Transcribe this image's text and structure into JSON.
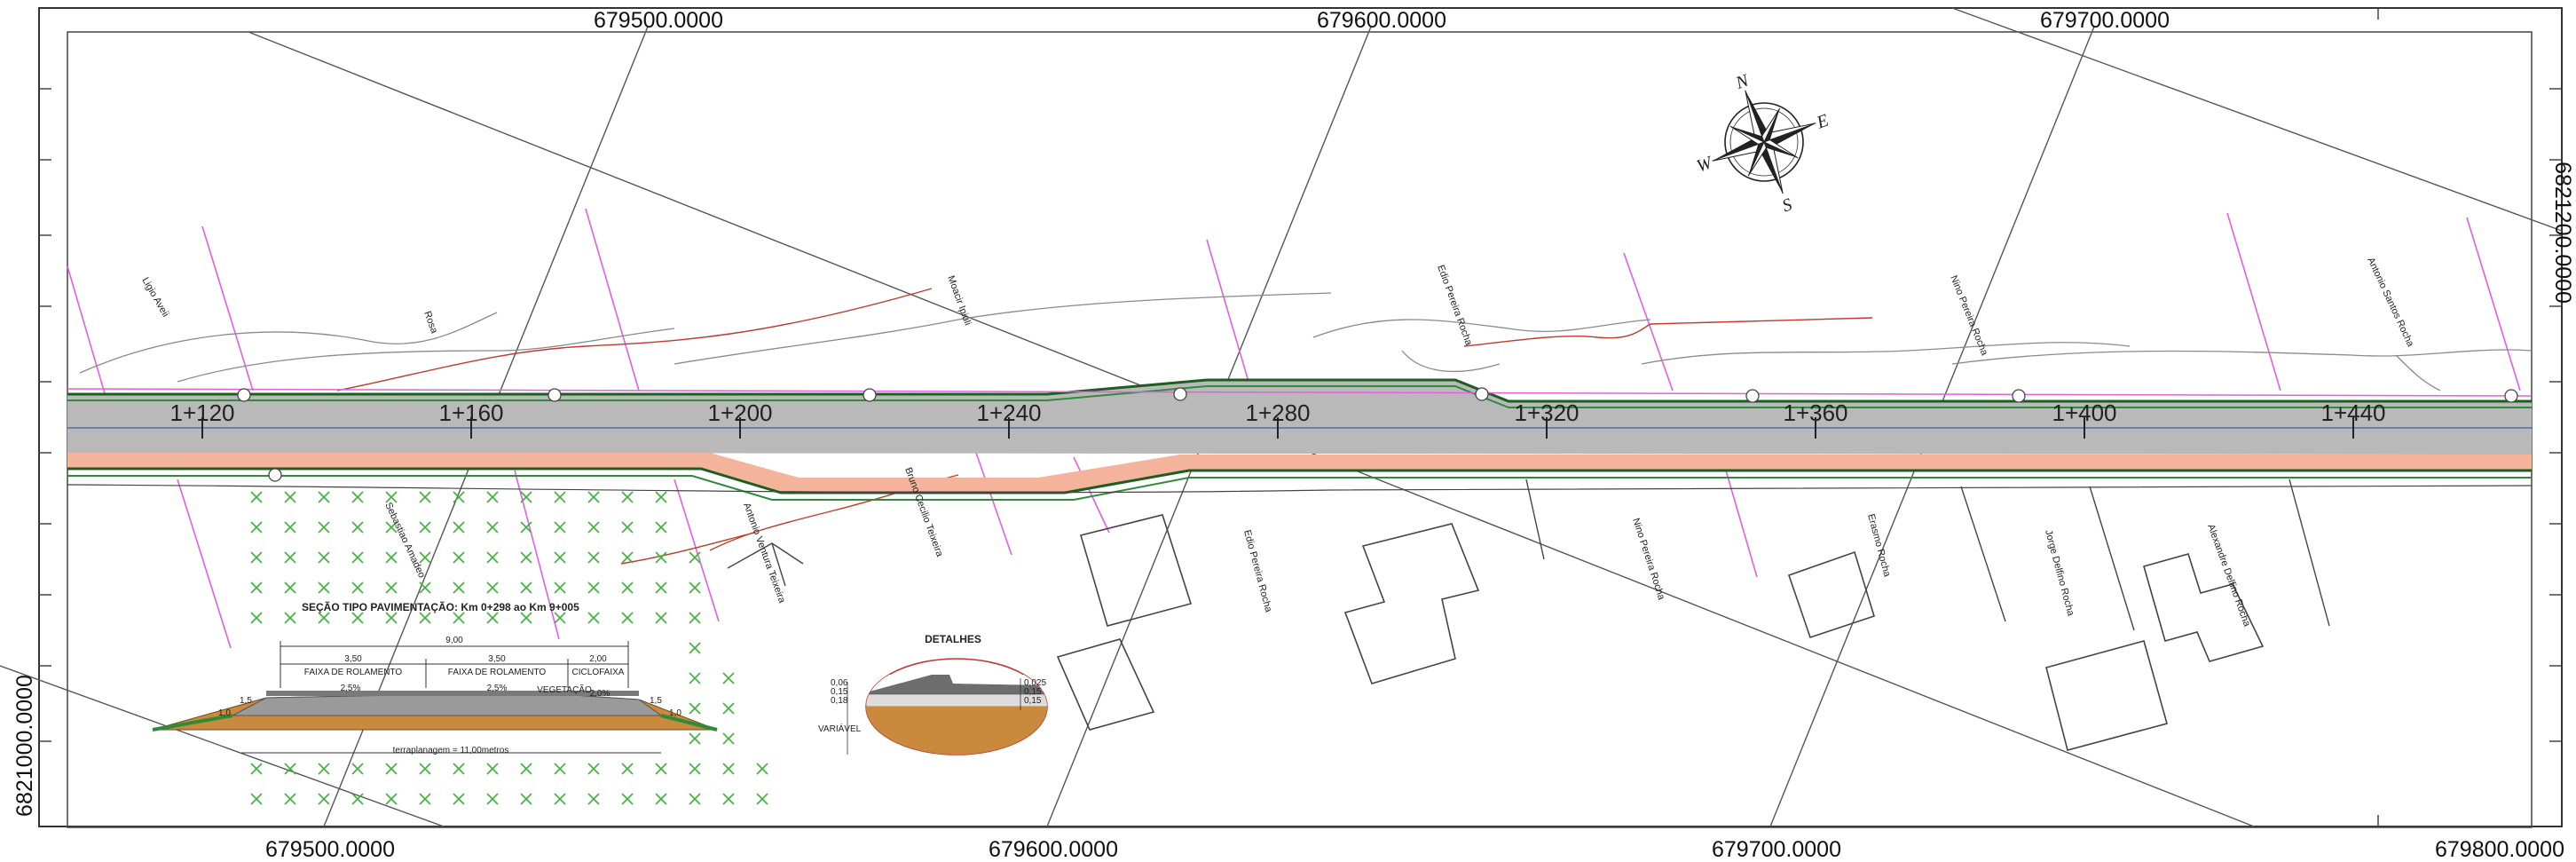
{
  "grid_labels": {
    "top": [
      "679500.0000",
      "679600.0000",
      "679700.0000"
    ],
    "bottom": [
      "679500.0000",
      "679600.0000",
      "679700.0000",
      "679800.0000"
    ],
    "left": [
      "6821000.0000"
    ],
    "right": [
      "6821200.0000"
    ]
  },
  "stations": [
    "1+120",
    "1+160",
    "1+200",
    "1+240",
    "1+280",
    "1+320",
    "1+360",
    "1+400",
    "1+440"
  ],
  "compass": {
    "n": "N",
    "s": "S",
    "e": "E",
    "w": "W"
  },
  "streets": [
    "Ligio Aveii",
    "Rosa",
    "Moacir Ipiuli",
    "Edio Pereira Rocha",
    "Nino Pereira Rocha",
    "Antonio Santos Rocha",
    "Sebastiao Amadeo",
    "Antonio Ventura Teixeira",
    "Bruno Cecilio Teixeira",
    "Edio Pereira Rocha",
    "Nino Pereira Rocha",
    "Erasmo Rocha",
    "Jorge Delfino Rocha",
    "Alexandre Delfino Rocha"
  ],
  "section": {
    "title": "SEÇÃO TIPO PAVIMENTAÇÃO: Km 0+298 ao Km 9+005",
    "total_width": "9,00",
    "lane1_width": "3,50",
    "lane2_width": "3,50",
    "cycle_width": "2,00",
    "lane1_label": "FAIXA DE ROLAMENTO",
    "lane2_label": "FAIXA DE ROLAMENTO",
    "cycle_label": "CICLOFAIXA",
    "slope1": "2,5%",
    "slope2": "2,5%",
    "slope3": "2,0%",
    "vegetation": "VEGETAÇÃO",
    "ratio_left_a": "1,5",
    "ratio_left_b": "1,0",
    "ratio_right_a": "1,5",
    "ratio_right_b": "1,0",
    "terrain": "terraplanagem = 11,00metros"
  },
  "detail": {
    "title": "DETALHES",
    "left_labels": [
      "0,06",
      "0,15",
      "0,18"
    ],
    "right_labels": [
      "0,025",
      "0,15",
      "0,15"
    ],
    "variable": "VARIÁVEL"
  },
  "colors": {
    "road": "#b9b9b9",
    "bike_lane": "#f4b49c",
    "edge_green": "#2e8b3a",
    "grid": "#555555",
    "property": "#e060e0",
    "contour_red": "#c0392b",
    "vegetation": "#3cb43c"
  }
}
